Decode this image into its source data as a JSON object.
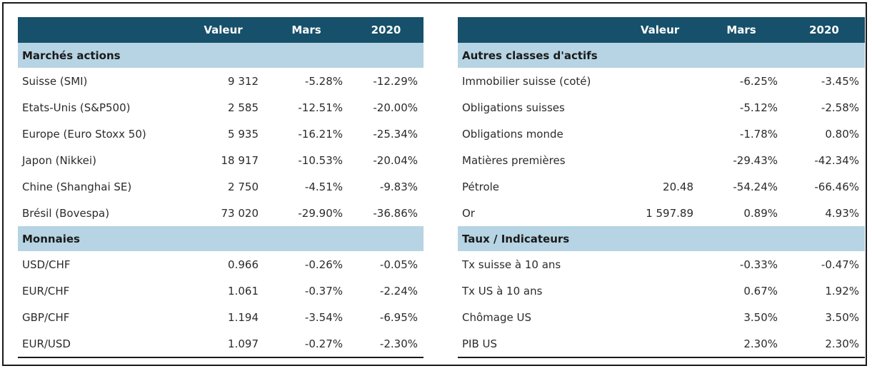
{
  "left_table": {
    "headers": [
      "",
      "Valeur",
      "Mars",
      "2020"
    ],
    "sections": [
      {
        "title": "Marchés actions",
        "rows": [
          [
            "Suisse (SMI)",
            "9 312",
            "-5.28%",
            "-12.29%"
          ],
          [
            "Etats-Unis (S&P500)",
            "2 585",
            "-12.51%",
            "-20.00%"
          ],
          [
            "Europe (Euro Stoxx 50)",
            "5 935",
            "-16.21%",
            "-25.34%"
          ],
          [
            "Japon (Nikkei)",
            "18 917",
            "-10.53%",
            "-20.04%"
          ],
          [
            "Chine (Shanghai SE)",
            "2 750",
            "-4.51%",
            "-9.83%"
          ],
          [
            "Brésil (Bovespa)",
            "73 020",
            "-29.90%",
            "-36.86%"
          ]
        ]
      },
      {
        "title": "Monnaies",
        "rows": [
          [
            "USD/CHF",
            "0.966",
            "-0.26%",
            "-0.05%"
          ],
          [
            "EUR/CHF",
            "1.061",
            "-0.37%",
            "-2.24%"
          ],
          [
            "GBP/CHF",
            "1.194",
            "-3.54%",
            "-6.95%"
          ],
          [
            "EUR/USD",
            "1.097",
            "-0.27%",
            "-2.30%"
          ]
        ]
      }
    ]
  },
  "right_table": {
    "headers": [
      "",
      "Valeur",
      "Mars",
      "2020"
    ],
    "sections": [
      {
        "title": "Autres classes d'actifs",
        "rows": [
          [
            "Immobilier suisse (coté)",
            "",
            "-6.25%",
            "-3.45%"
          ],
          [
            "Obligations suisses",
            "",
            "-5.12%",
            "-2.58%"
          ],
          [
            "Obligations monde",
            "",
            "-1.78%",
            "0.80%"
          ],
          [
            "Matières premières",
            "",
            "-29.43%",
            "-42.34%"
          ],
          [
            "Pétrole",
            "20.48",
            "-54.24%",
            "-66.46%"
          ],
          [
            "Or",
            "1 597.89",
            "0.89%",
            "4.93%"
          ]
        ]
      },
      {
        "title": "Taux / Indicateurs",
        "rows": [
          [
            "Tx suisse à 10 ans",
            "",
            "-0.33%",
            "-0.47%"
          ],
          [
            "Tx US à 10 ans",
            "",
            "0.67%",
            "1.92%"
          ],
          [
            "Chômage US",
            "",
            "3.50%",
            "3.50%"
          ],
          [
            "PIB US",
            "",
            "2.30%",
            "2.30%"
          ]
        ]
      }
    ]
  },
  "colors": {
    "header_bg": "#17506a",
    "section_bg": "#b6d4e3"
  }
}
